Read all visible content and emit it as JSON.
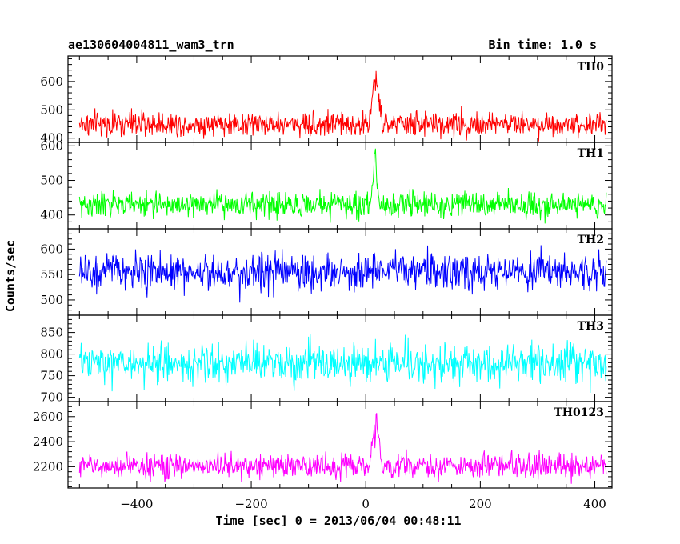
{
  "chart_data": {
    "type": "line",
    "title": "ae130604004811_wam3_trn",
    "subtitle": "Bin time: 1.0 s",
    "xlabel": "Time [sec] 0 = 2013/06/04 00:48:11",
    "ylabel": "Counts/sec",
    "xlim": [
      -520,
      430
    ],
    "x_range": [
      -500,
      420
    ],
    "x_ticks": [
      -400,
      -200,
      0,
      200,
      400
    ],
    "x_tick_labels": [
      "−400",
      "−200",
      "0",
      "200",
      "400"
    ],
    "grid": false,
    "panels": [
      {
        "name": "TH0",
        "color": "#ff0000",
        "ylim": [
          385,
          690
        ],
        "y_ticks": [
          400,
          500,
          600
        ],
        "baseline": 450,
        "noise": 22,
        "burst": {
          "start": 5,
          "peak": 18,
          "end": 28,
          "height": 200
        }
      },
      {
        "name": "TH1",
        "color": "#00ff00",
        "ylim": [
          360,
          610
        ],
        "y_ticks": [
          400,
          500,
          600
        ],
        "baseline": 430,
        "noise": 18,
        "burst": {
          "start": 8,
          "peak": 16,
          "end": 24,
          "height": 160
        }
      },
      {
        "name": "TH2",
        "color": "#0000ff",
        "ylim": [
          470,
          640
        ],
        "y_ticks": [
          500,
          550,
          600
        ],
        "baseline": 555,
        "noise": 18,
        "burst": {
          "start": 8,
          "peak": 14,
          "end": 20,
          "height": 25
        }
      },
      {
        "name": "TH3",
        "color": "#00ffff",
        "ylim": [
          690,
          890
        ],
        "y_ticks": [
          700,
          750,
          800,
          850
        ],
        "baseline": 778,
        "noise": 22,
        "burst": {
          "start": 10,
          "peak": 14,
          "end": 18,
          "height": 15
        }
      },
      {
        "name": "TH0123",
        "color": "#ff00ff",
        "ylim": [
          2030,
          2720
        ],
        "y_ticks": [
          2200,
          2400,
          2600
        ],
        "baseline": 2205,
        "noise": 48,
        "burst": {
          "start": 5,
          "peak": 18,
          "end": 28,
          "height": 420
        }
      }
    ]
  }
}
